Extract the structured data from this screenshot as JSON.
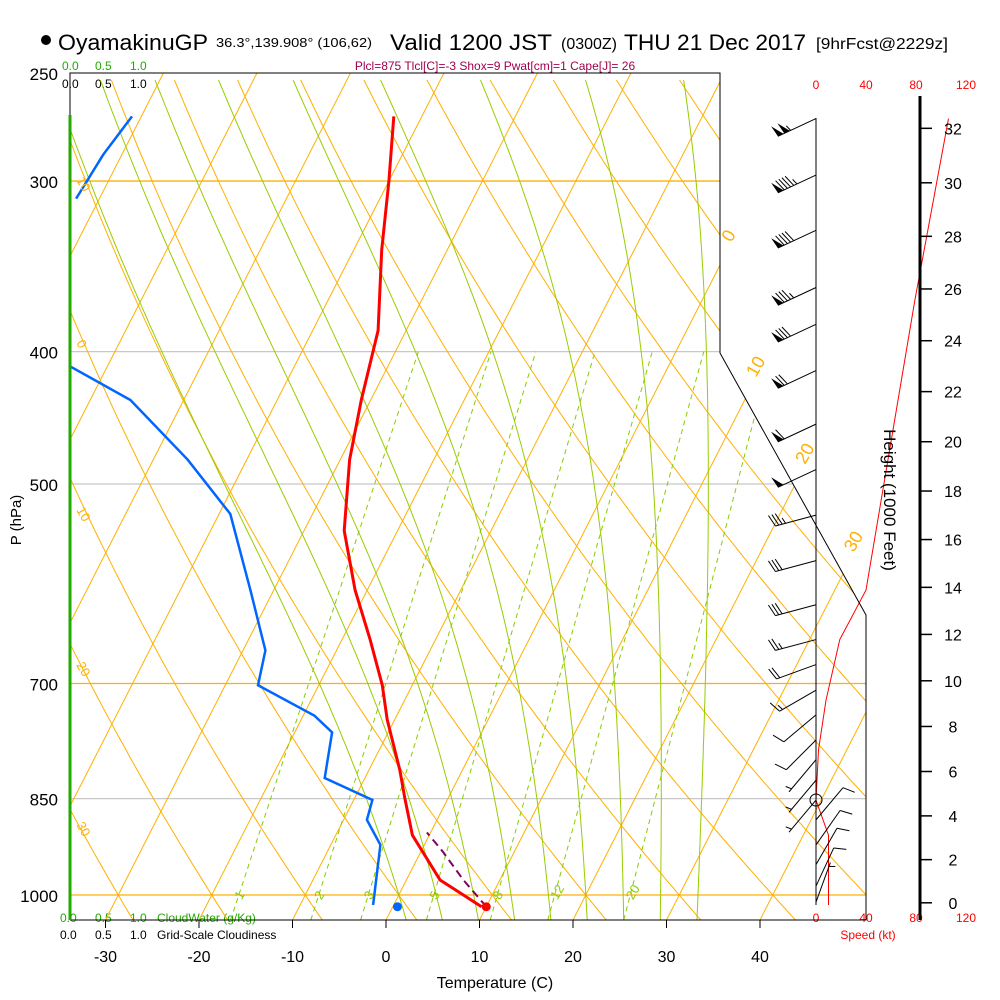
{
  "header": {
    "station": "OyamakinuGP",
    "location": "36.3°,139.908° (106,62)",
    "valid": "Valid 1200 JST",
    "zulu": "(0300Z)",
    "date": "THU 21 Dec 2017",
    "forecast": "[9hrFcst@2229z]",
    "indices": "Plcl=875 Tlcl[C]=-3 Shox=9 Pwat[cm]=1 Cape[J]= 26"
  },
  "legend": {
    "cloudwater_ticks": [
      "0.0",
      "0.5",
      "1.0"
    ],
    "cloudwater_label": "CloudWater (g/Kg)",
    "cloudiness_ticks": [
      "0.0",
      "0.5",
      "1.0"
    ],
    "cloudiness_label": "Grid-Scale Cloudiness"
  },
  "colors": {
    "temperature": "#ff0000",
    "dewpoint": "#0066ff",
    "parcel": "#800060",
    "isotherm": "#ffb000",
    "moist_adiabat": "#99cc00",
    "mixing_ratio": "#88cc00",
    "cloudwater": "#22aa00",
    "indices": "#a0004f",
    "speed": "#ff0000"
  },
  "chart_data": {
    "type": "line",
    "subtype": "skew-T log-p",
    "xlabel": "Temperature (C)",
    "ylabel": "P (hPa)",
    "y2label": "Height (1000 Feet)",
    "speed_label": "Speed (kt)",
    "xticks": [
      -30,
      -20,
      -10,
      0,
      10,
      20,
      30,
      40
    ],
    "xtick_labels": [
      "-30",
      "-20",
      "-10",
      "0",
      "10",
      "20",
      "30",
      "40"
    ],
    "yticks": [
      250,
      300,
      400,
      500,
      700,
      850,
      1000
    ],
    "ytick_labels": [
      "250",
      "300",
      "400",
      "500",
      "700",
      "850",
      "1000"
    ],
    "ylim": [
      1043,
      250
    ],
    "isobars": [
      300,
      400,
      500,
      700,
      850,
      1000
    ],
    "height_ticks_kft": [
      0,
      2,
      4,
      6,
      8,
      10,
      12,
      14,
      16,
      18,
      20,
      22,
      24,
      26,
      28,
      30,
      32
    ],
    "height_tick_labels": [
      "0",
      "2",
      "4",
      "6",
      "8",
      "10",
      "12",
      "14",
      "16",
      "18",
      "20",
      "22",
      "24",
      "26",
      "28",
      "30",
      "32"
    ],
    "speed_ticks_kt": [
      0,
      40,
      80,
      120
    ],
    "speed_tick_labels": [
      "0",
      "40",
      "80",
      "120"
    ],
    "isotherm_labels": [
      {
        "t": 0,
        "text": "0"
      },
      {
        "t": 10,
        "text": "10"
      },
      {
        "t": 20,
        "text": "20"
      },
      {
        "t": 30,
        "text": "30"
      }
    ],
    "dry_adiabat_labels": [
      "10",
      "0",
      "10",
      "20",
      "30"
    ],
    "mixing_ratio_lines": [
      1,
      2,
      3,
      5,
      8,
      12,
      20
    ],
    "mixing_ratio_labels": [
      "1",
      "2",
      "3",
      "5",
      "8",
      "12",
      "20"
    ],
    "series": [
      {
        "name": "Temperature",
        "p": [
          1020,
          975,
          904,
          850,
          810,
          744,
          702,
          650,
          598,
          541,
          480,
          434,
          386,
          337,
          300,
          269
        ],
        "t": [
          9.5,
          3.6,
          -1.8,
          -4.6,
          -6.7,
          -10.8,
          -13.2,
          -17,
          -21.3,
          -25.7,
          -29,
          -31,
          -33,
          -37,
          -40,
          -43
        ]
      },
      {
        "name": "Dewpoint",
        "segments": [
          {
            "p": [
              1017,
              919,
              881,
              852,
              821,
              760,
              739,
              702,
              662,
              598,
              526,
              480,
              434,
              410
            ],
            "t": [
              -2.2,
              -4.7,
              -7.5,
              -8,
              -14.3,
              -16,
              -18.8,
              -26.5,
              -27.6,
              -32.5,
              -38.8,
              -46.3,
              -55.7,
              -64
            ]
          },
          {
            "p": [
              269,
              287,
              309
            ],
            "t": [
              -71,
              -72,
              -72.5
            ]
          }
        ]
      },
      {
        "name": "Parcel",
        "p": [
          1020,
          975,
          930,
          900
        ],
        "t": [
          10,
          6.1,
          2.4,
          -0.4
        ]
      }
    ],
    "surface": {
      "temperature": 10,
      "dewpoint": 0.5,
      "p": 1020
    },
    "wind_speed_profile": {
      "p": [
        1017,
        975,
        904,
        852,
        783,
        720,
        650,
        598,
        367,
        270
      ],
      "kt": [
        10,
        10,
        10,
        0,
        2,
        8,
        19,
        40,
        79,
        106
      ]
    },
    "winds": [
      {
        "p": 270,
        "dir": 245,
        "kt": 105
      },
      {
        "p": 297,
        "dir": 245,
        "kt": 95
      },
      {
        "p": 326,
        "dir": 245,
        "kt": 90
      },
      {
        "p": 359,
        "dir": 245,
        "kt": 85
      },
      {
        "p": 382,
        "dir": 245,
        "kt": 80
      },
      {
        "p": 413,
        "dir": 245,
        "kt": 70
      },
      {
        "p": 452,
        "dir": 245,
        "kt": 60
      },
      {
        "p": 488,
        "dir": 245,
        "kt": 50
      },
      {
        "p": 527,
        "dir": 255,
        "kt": 35
      },
      {
        "p": 569,
        "dir": 255,
        "kt": 30
      },
      {
        "p": 613,
        "dir": 255,
        "kt": 30
      },
      {
        "p": 650,
        "dir": 255,
        "kt": 25
      },
      {
        "p": 678,
        "dir": 250,
        "kt": 20
      },
      {
        "p": 708,
        "dir": 240,
        "kt": 15
      },
      {
        "p": 738,
        "dir": 230,
        "kt": 10
      },
      {
        "p": 770,
        "dir": 225,
        "kt": 10
      },
      {
        "p": 796,
        "dir": 220,
        "kt": 5
      },
      {
        "p": 824,
        "dir": 220,
        "kt": 5
      },
      {
        "p": 852,
        "dir": 220,
        "kt": 5
      },
      {
        "p": 881,
        "dir": 40,
        "kt": 10
      },
      {
        "p": 919,
        "dir": 35,
        "kt": 10
      },
      {
        "p": 950,
        "dir": 30,
        "kt": 10
      },
      {
        "p": 985,
        "dir": 25,
        "kt": 10
      },
      {
        "p": 1012,
        "dir": 20,
        "kt": 5
      }
    ]
  }
}
